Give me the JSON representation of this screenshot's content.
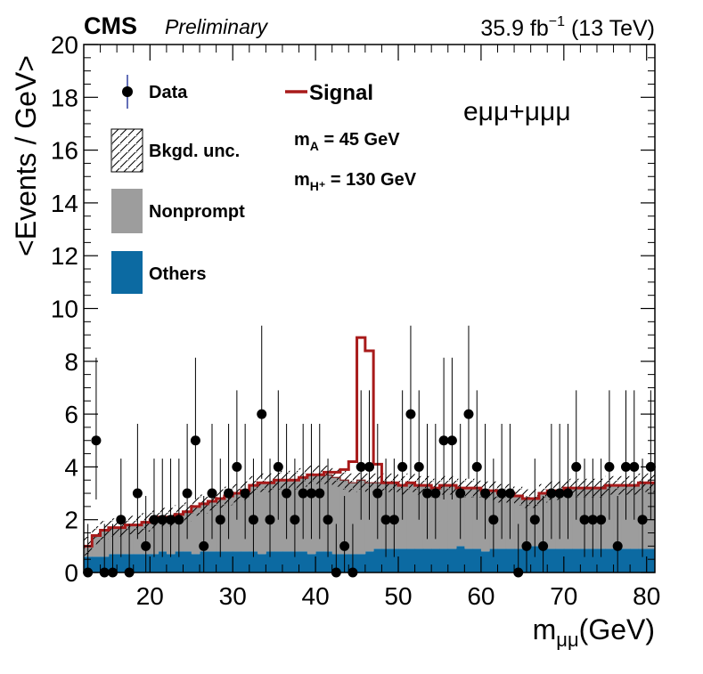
{
  "header": {
    "experiment": "CMS",
    "status": "Preliminary",
    "lumi_value": "35.9 fb",
    "lumi_exp": "−1",
    "energy": " (13 TeV)"
  },
  "chart_data": {
    "type": "histogram",
    "xlabel_main": "m",
    "xlabel_sub": "μμ",
    "xlabel_unit": "(GeV)",
    "ylabel": "<Events / GeV>",
    "xlim": [
      12,
      81
    ],
    "ylim": [
      0,
      20
    ],
    "x_ticks": [
      20,
      30,
      40,
      50,
      60,
      70,
      80
    ],
    "y_ticks": [
      0,
      2,
      4,
      6,
      8,
      10,
      12,
      14,
      16,
      18,
      20
    ],
    "channel": "eμμ+μμμ",
    "legend": {
      "data": "Data",
      "unc": "Bkgd. unc.",
      "nonprompt": "Nonprompt",
      "others": "Others",
      "signal": "Signal"
    },
    "signal_params": {
      "mA": "m_A = 45 GeV",
      "mA_prefix": "m",
      "mA_sub": "A",
      "mA_rest": " = 45 GeV",
      "mH_prefix": "m",
      "mH_sub": "H⁺",
      "mH_rest": " = 130 GeV"
    },
    "colors": {
      "others": "#0c6aa2",
      "nonprompt": "#9d9d9d",
      "signal": "#a81a1a",
      "data": "#000000"
    },
    "bin_edges_start": 12,
    "bin_width": 1,
    "others": [
      0.6,
      0.6,
      0.6,
      0.7,
      0.7,
      0.7,
      0.7,
      0.7,
      0.7,
      0.8,
      0.7,
      0.8,
      0.8,
      0.7,
      0.8,
      0.8,
      0.8,
      0.8,
      0.8,
      0.8,
      0.8,
      0.7,
      0.8,
      0.8,
      0.8,
      0.8,
      0.8,
      0.7,
      0.8,
      0.8,
      0.7,
      0.7,
      0.7,
      0.7,
      0.8,
      0.9,
      0.9,
      0.9,
      0.9,
      0.9,
      0.9,
      0.9,
      0.9,
      0.9,
      0.9,
      1.0,
      0.9,
      0.9,
      0.8,
      0.9,
      0.9,
      0.9,
      0.9,
      1.0,
      1.0,
      0.9,
      0.9,
      0.9,
      0.9,
      0.9,
      0.9,
      0.9,
      0.9,
      0.9,
      0.9,
      0.9,
      0.9,
      0.9,
      0.9
    ],
    "total_bkg": [
      1.0,
      1.4,
      1.6,
      1.7,
      1.7,
      1.8,
      1.8,
      1.9,
      2.0,
      2.1,
      2.1,
      2.2,
      2.3,
      2.5,
      2.6,
      2.7,
      2.8,
      2.9,
      3.0,
      3.1,
      3.3,
      3.4,
      3.4,
      3.5,
      3.5,
      3.5,
      3.6,
      3.7,
      3.7,
      3.7,
      3.6,
      3.5,
      3.4,
      3.5,
      3.4,
      3.4,
      3.4,
      3.4,
      3.3,
      3.4,
      3.3,
      3.3,
      3.2,
      3.3,
      3.3,
      3.2,
      3.2,
      3.2,
      3.1,
      3.1,
      3.0,
      3.0,
      2.9,
      2.8,
      2.8,
      3.0,
      3.1,
      3.1,
      3.2,
      3.2,
      3.2,
      3.2,
      3.2,
      3.3,
      3.3,
      3.3,
      3.3,
      3.4,
      3.4
    ],
    "signal_total": [
      1.0,
      1.4,
      1.6,
      1.7,
      1.7,
      1.8,
      1.8,
      1.9,
      2.0,
      2.1,
      2.1,
      2.2,
      2.3,
      2.5,
      2.6,
      2.7,
      2.8,
      2.9,
      3.0,
      3.1,
      3.3,
      3.4,
      3.4,
      3.5,
      3.5,
      3.5,
      3.6,
      3.7,
      3.7,
      3.8,
      3.8,
      3.9,
      4.2,
      8.9,
      8.4,
      4.1,
      3.4,
      3.4,
      3.3,
      3.4,
      3.3,
      3.3,
      3.2,
      3.3,
      3.3,
      3.2,
      3.2,
      3.2,
      3.1,
      3.1,
      3.0,
      3.0,
      2.9,
      2.8,
      2.8,
      3.0,
      3.1,
      3.1,
      3.2,
      3.2,
      3.2,
      3.2,
      3.2,
      3.3,
      3.3,
      3.3,
      3.3,
      3.4,
      3.4
    ],
    "data": [
      {
        "x": 12.5,
        "y": 0
      },
      {
        "x": 13.5,
        "y": 5
      },
      {
        "x": 14.5,
        "y": 0
      },
      {
        "x": 15.5,
        "y": 0
      },
      {
        "x": 16.5,
        "y": 2
      },
      {
        "x": 17.5,
        "y": 0
      },
      {
        "x": 18.5,
        "y": 3
      },
      {
        "x": 19.5,
        "y": 1
      },
      {
        "x": 20.5,
        "y": 2
      },
      {
        "x": 21.5,
        "y": 2
      },
      {
        "x": 22.5,
        "y": 2
      },
      {
        "x": 23.5,
        "y": 2
      },
      {
        "x": 24.5,
        "y": 3
      },
      {
        "x": 25.5,
        "y": 5
      },
      {
        "x": 26.5,
        "y": 1
      },
      {
        "x": 27.5,
        "y": 3
      },
      {
        "x": 28.5,
        "y": 2
      },
      {
        "x": 29.5,
        "y": 3
      },
      {
        "x": 30.5,
        "y": 4
      },
      {
        "x": 31.5,
        "y": 3
      },
      {
        "x": 32.5,
        "y": 2
      },
      {
        "x": 33.5,
        "y": 6
      },
      {
        "x": 34.5,
        "y": 2
      },
      {
        "x": 35.5,
        "y": 4
      },
      {
        "x": 36.5,
        "y": 3
      },
      {
        "x": 37.5,
        "y": 2
      },
      {
        "x": 38.5,
        "y": 3
      },
      {
        "x": 39.5,
        "y": 3
      },
      {
        "x": 40.5,
        "y": 3
      },
      {
        "x": 41.5,
        "y": 2
      },
      {
        "x": 42.5,
        "y": 0
      },
      {
        "x": 43.5,
        "y": 1
      },
      {
        "x": 44.5,
        "y": 0
      },
      {
        "x": 45.5,
        "y": 4
      },
      {
        "x": 46.5,
        "y": 4
      },
      {
        "x": 47.5,
        "y": 3
      },
      {
        "x": 48.5,
        "y": 2
      },
      {
        "x": 49.5,
        "y": 2
      },
      {
        "x": 50.5,
        "y": 4
      },
      {
        "x": 51.5,
        "y": 6
      },
      {
        "x": 52.5,
        "y": 4
      },
      {
        "x": 53.5,
        "y": 3
      },
      {
        "x": 54.5,
        "y": 3
      },
      {
        "x": 55.5,
        "y": 5
      },
      {
        "x": 56.5,
        "y": 5
      },
      {
        "x": 57.5,
        "y": 3
      },
      {
        "x": 58.5,
        "y": 6
      },
      {
        "x": 59.5,
        "y": 4
      },
      {
        "x": 60.5,
        "y": 3
      },
      {
        "x": 61.5,
        "y": 2
      },
      {
        "x": 62.5,
        "y": 3
      },
      {
        "x": 63.5,
        "y": 3
      },
      {
        "x": 64.5,
        "y": 0
      },
      {
        "x": 65.5,
        "y": 1
      },
      {
        "x": 66.5,
        "y": 2
      },
      {
        "x": 67.5,
        "y": 1
      },
      {
        "x": 68.5,
        "y": 3
      },
      {
        "x": 69.5,
        "y": 3
      },
      {
        "x": 70.5,
        "y": 3
      },
      {
        "x": 71.5,
        "y": 4
      },
      {
        "x": 72.5,
        "y": 2
      },
      {
        "x": 73.5,
        "y": 2
      },
      {
        "x": 74.5,
        "y": 2
      },
      {
        "x": 75.5,
        "y": 4
      },
      {
        "x": 76.5,
        "y": 1
      },
      {
        "x": 77.5,
        "y": 4
      },
      {
        "x": 78.5,
        "y": 4
      },
      {
        "x": 79.5,
        "y": 2
      },
      {
        "x": 80.5,
        "y": 4
      }
    ]
  }
}
